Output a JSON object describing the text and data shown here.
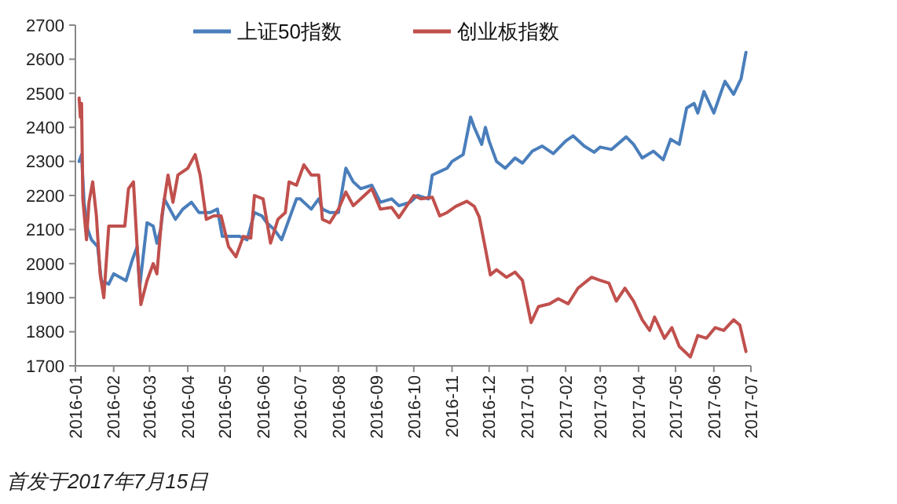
{
  "chart_data": {
    "type": "line",
    "legend": "top",
    "grid": false,
    "marker": "none",
    "line_style": "solid",
    "xlim": [
      "2016-01",
      "2017-07"
    ],
    "xticks": [
      "2016-01",
      "2016-02",
      "2016-03",
      "2016-04",
      "2016-05",
      "2016-06",
      "2016-07",
      "2016-08",
      "2016-09",
      "2016-10",
      "2016-11",
      "2016-12",
      "2017-01",
      "2017-02",
      "2017-03",
      "2017-04",
      "2017-05",
      "2017-06",
      "2017-07"
    ],
    "ylim": [
      1700,
      2700
    ],
    "yticks": [
      1700,
      1800,
      1900,
      2000,
      2100,
      2200,
      2300,
      2400,
      2500,
      2600,
      2700
    ],
    "annotations": [
      "首发于2017年7月15日"
    ],
    "series": [
      {
        "name": "上证50指数",
        "color": "#4a7ebb",
        "x": [
          "2016-01-04",
          "2016-01-06",
          "2016-01-08",
          "2016-01-11",
          "2016-01-14",
          "2016-01-19",
          "2016-01-22",
          "2016-01-28",
          "2016-02-01",
          "2016-02-11",
          "2016-02-16",
          "2016-02-20",
          "2016-02-22",
          "2016-02-28",
          "2016-03-04",
          "2016-03-07",
          "2016-03-10",
          "2016-03-13",
          "2016-03-16",
          "2016-03-22",
          "2016-03-28",
          "2016-04-04",
          "2016-04-10",
          "2016-04-19",
          "2016-04-25",
          "2016-04-29",
          "2016-05-13",
          "2016-05-19",
          "2016-05-25",
          "2016-05-31",
          "2016-06-04",
          "2016-06-10",
          "2016-06-16",
          "2016-06-22",
          "2016-06-28",
          "2016-07-01",
          "2016-07-10",
          "2016-07-16",
          "2016-07-19",
          "2016-07-25",
          "2016-08-01",
          "2016-08-07",
          "2016-08-13",
          "2016-08-19",
          "2016-08-28",
          "2016-09-04",
          "2016-09-13",
          "2016-09-19",
          "2016-09-28",
          "2016-10-04",
          "2016-10-13",
          "2016-10-16",
          "2016-10-22",
          "2016-10-28",
          "2016-11-01",
          "2016-11-10",
          "2016-11-16",
          "2016-11-19",
          "2016-11-25",
          "2016-11-28",
          "2016-12-01",
          "2016-12-07",
          "2016-12-14",
          "2016-12-22",
          "2016-12-28",
          "2017-01-05",
          "2017-01-13",
          "2017-01-22",
          "2017-02-01",
          "2017-02-07",
          "2017-02-16",
          "2017-02-24",
          "2017-03-01",
          "2017-03-10",
          "2017-03-22",
          "2017-03-28",
          "2017-04-04",
          "2017-04-13",
          "2017-04-21",
          "2017-04-27",
          "2017-05-04",
          "2017-05-10",
          "2017-05-16",
          "2017-05-19",
          "2017-05-24",
          "2017-06-01",
          "2017-06-07",
          "2017-06-10",
          "2017-06-17",
          "2017-06-22",
          "2017-06-23",
          "2017-06-27"
        ],
        "values": [
          2300,
          2320,
          2180,
          2100,
          2070,
          2050,
          1950,
          1940,
          1970,
          1950,
          2010,
          2050,
          1930,
          2120,
          2110,
          2060,
          2100,
          2190,
          2170,
          2130,
          2160,
          2180,
          2150,
          2150,
          2160,
          2080,
          2080,
          2070,
          2150,
          2140,
          2120,
          2100,
          2070,
          2130,
          2190,
          2190,
          2160,
          2190,
          2160,
          2150,
          2150,
          2280,
          2240,
          2220,
          2230,
          2180,
          2190,
          2170,
          2180,
          2200,
          2190,
          2260,
          2270,
          2280,
          2300,
          2320,
          2430,
          2400,
          2350,
          2400,
          2360,
          2300,
          2280,
          2310,
          2295,
          2330,
          2345,
          2323,
          2360,
          2375,
          2345,
          2327,
          2342,
          2335,
          2372,
          2350,
          2310,
          2330,
          2305,
          2365,
          2350,
          2457,
          2470,
          2442,
          2505,
          2442,
          2505,
          2535,
          2497,
          2535,
          2542,
          2620
        ]
      },
      {
        "name": "创业板指数",
        "color": "#c0504d",
        "x": [
          "2016-01-04",
          "2016-01-05",
          "2016-01-06",
          "2016-01-07",
          "2016-01-10",
          "2016-01-12",
          "2016-01-15",
          "2016-01-18",
          "2016-01-21",
          "2016-01-24",
          "2016-01-28",
          "2016-02-01",
          "2016-02-10",
          "2016-02-13",
          "2016-02-17",
          "2016-02-20",
          "2016-02-23",
          "2016-02-28",
          "2016-03-04",
          "2016-03-07",
          "2016-03-11",
          "2016-03-16",
          "2016-03-20",
          "2016-03-24",
          "2016-04-01",
          "2016-04-07",
          "2016-04-11",
          "2016-04-16",
          "2016-04-22",
          "2016-04-28",
          "2016-05-04",
          "2016-05-10",
          "2016-05-16",
          "2016-05-22",
          "2016-05-25",
          "2016-06-01",
          "2016-06-07",
          "2016-06-13",
          "2016-06-19",
          "2016-06-22",
          "2016-06-28",
          "2016-07-04",
          "2016-07-10",
          "2016-07-16",
          "2016-07-19",
          "2016-07-25",
          "2016-08-01",
          "2016-08-07",
          "2016-08-13",
          "2016-08-22",
          "2016-08-28",
          "2016-09-04",
          "2016-09-13",
          "2016-09-19",
          "2016-10-01",
          "2016-10-07",
          "2016-10-16",
          "2016-10-22",
          "2016-10-28",
          "2016-11-04",
          "2016-11-13",
          "2016-11-19",
          "2016-11-23",
          "2016-11-28",
          "2016-12-02",
          "2016-12-07",
          "2016-12-15",
          "2016-12-22",
          "2016-12-28",
          "2017-01-04",
          "2017-01-10",
          "2017-01-19",
          "2017-01-26",
          "2017-02-03",
          "2017-02-11",
          "2017-02-22",
          "2017-03-01",
          "2017-03-08",
          "2017-03-14",
          "2017-03-21",
          "2017-03-28",
          "2017-04-04",
          "2017-04-10",
          "2017-04-14",
          "2017-04-22",
          "2017-04-28",
          "2017-05-04",
          "2017-05-13",
          "2017-05-19",
          "2017-05-26",
          "2017-06-02",
          "2017-06-09",
          "2017-06-17",
          "2017-06-22",
          "2017-06-27"
        ],
        "values": [
          2486,
          2430,
          2470,
          2190,
          2070,
          2180,
          2240,
          2140,
          1970,
          1900,
          2110,
          2110,
          2110,
          2220,
          2240,
          2050,
          1880,
          1950,
          2000,
          1970,
          2140,
          2260,
          2180,
          2260,
          2280,
          2320,
          2260,
          2130,
          2140,
          2140,
          2050,
          2020,
          2080,
          2075,
          2200,
          2190,
          2060,
          2130,
          2150,
          2240,
          2230,
          2290,
          2260,
          2260,
          2130,
          2120,
          2160,
          2210,
          2170,
          2200,
          2220,
          2160,
          2165,
          2135,
          2200,
          2190,
          2195,
          2140,
          2150,
          2168,
          2183,
          2168,
          2137,
          2044,
          1967,
          1982,
          1960,
          1975,
          1951,
          1827,
          1874,
          1882,
          1897,
          1882,
          1928,
          1960,
          1951,
          1943,
          1890,
          1928,
          1890,
          1835,
          1804,
          1843,
          1781,
          1812,
          1757,
          1726,
          1789,
          1781,
          1812,
          1804,
          1835,
          1820,
          1742
        ]
      }
    ]
  }
}
